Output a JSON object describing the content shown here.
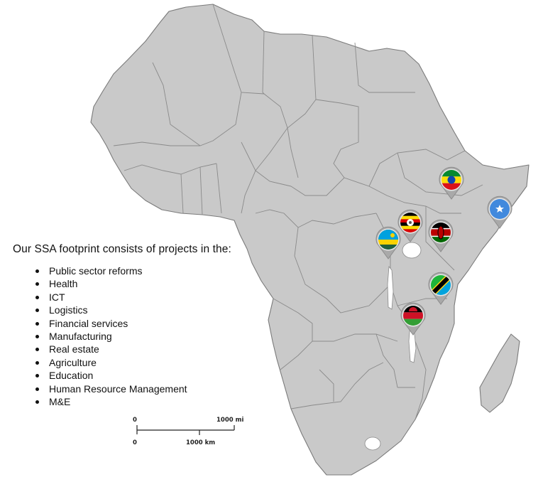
{
  "footprint": {
    "title": "Our SSA footprint consists of projects in the:",
    "sectors": [
      "Public sector reforms",
      "Health",
      "ICT",
      "Logistics",
      "Financial services",
      "Manufacturing",
      "Real estate",
      "Agriculture",
      "Education",
      "Human Resource Management",
      "M&E"
    ]
  },
  "markers": [
    {
      "country": "Ethiopia",
      "icon": "ethiopia-flag-icon"
    },
    {
      "country": "Somalia",
      "icon": "somalia-flag-icon"
    },
    {
      "country": "Uganda",
      "icon": "uganda-flag-icon"
    },
    {
      "country": "Rwanda",
      "icon": "rwanda-flag-icon"
    },
    {
      "country": "Kenya",
      "icon": "kenya-flag-icon"
    },
    {
      "country": "Tanzania",
      "icon": "tanzania-flag-icon"
    },
    {
      "country": "Malawi",
      "icon": "malawi-flag-icon"
    }
  ],
  "scale": {
    "zero_top": "0",
    "zero_bottom": "0",
    "miles": "1000 mi",
    "km": "1000 km"
  },
  "colors": {
    "land": "#c9c9c9",
    "border": "#8a8a8a",
    "pin": "#a9a9a9"
  }
}
